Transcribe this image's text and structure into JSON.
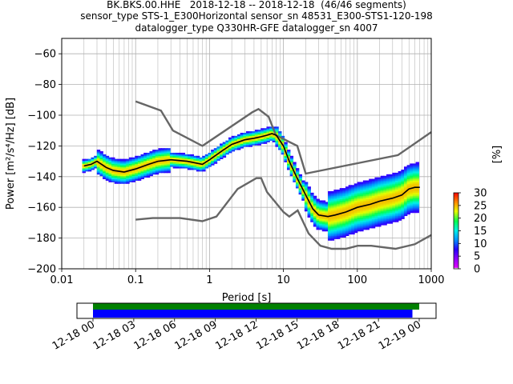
{
  "header": {
    "title_line1": "BK.BKS.00.HHE   2018-12-18 -- 2018-12-18  (46/46 segments)",
    "title_line2": "sensor_type STS-1_E300Horizontal sensor_sn 48531_E300-STS1-120-198",
    "title_line3": "datalogger_type Q330HR-GFE datalogger_sn 4007"
  },
  "chart_data": [
    {
      "type": "heatmap",
      "title": "BK.BKS.00.HHE   2018-12-18 -- 2018-12-18  (46/46 segments)",
      "xlabel": "Period [s]",
      "ylabel": "Power [m²/s⁴/Hz] [dB]",
      "xscale": "log",
      "xlim": [
        0.01,
        1000
      ],
      "ylim": [
        -200,
        -50
      ],
      "x_ticks": [
        "0.01",
        "0.1",
        "1",
        "10",
        "100",
        "1000"
      ],
      "y_ticks": [
        "−60",
        "−80",
        "−100",
        "−120",
        "−140",
        "−160",
        "−180",
        "−200"
      ],
      "grid": true,
      "colorbar": {
        "label": "[%]",
        "range": [
          0,
          30
        ],
        "ticks": [
          "0",
          "5",
          "10",
          "15",
          "20",
          "25",
          "30"
        ],
        "colors": [
          "#ffffff",
          "#d500ff",
          "#8a00ff",
          "#0000ff",
          "#00d4ff",
          "#00ff66",
          "#ffff00",
          "#ff8000",
          "#ff0000"
        ]
      },
      "mean_curve": {
        "x": [
          0.02,
          0.025,
          0.03,
          0.04,
          0.05,
          0.07,
          0.1,
          0.15,
          0.2,
          0.3,
          0.5,
          0.8,
          1,
          1.5,
          2,
          3,
          4,
          5,
          6,
          7,
          8,
          10,
          12,
          15,
          20,
          25,
          30,
          40,
          50,
          70,
          100,
          150,
          200,
          300,
          400,
          500,
          600,
          700
        ],
        "y": [
          -133,
          -132,
          -130,
          -134,
          -136,
          -137,
          -135,
          -132,
          -130,
          -129,
          -130,
          -132,
          -129,
          -123,
          -119,
          -116,
          -115,
          -114,
          -113,
          -112,
          -113,
          -120,
          -130,
          -140,
          -152,
          -161,
          -165,
          -166,
          -165,
          -163,
          -160,
          -158,
          -156,
          -154,
          -152,
          -148,
          -147,
          -147
        ]
      },
      "nlnm": {
        "x": [
          0.1,
          0.17,
          0.4,
          0.8,
          1.24,
          2.4,
          4.3,
          5,
          6,
          10,
          12,
          15.6,
          21.9,
          31.6,
          45,
          70,
          101,
          154,
          328,
          600,
          1000
        ],
        "y": [
          -168,
          -167,
          -167,
          -169,
          -166,
          -148,
          -141,
          -141,
          -150,
          -163,
          -166,
          -162,
          -177,
          -185,
          -187,
          -187,
          -185,
          -185,
          -187,
          -184,
          -178
        ]
      },
      "nhnm": {
        "x": [
          0.1,
          0.22,
          0.32,
          0.8,
          3.8,
          4.6,
          6.3,
          7.9,
          15.4,
          20,
          354.8,
          1000
        ],
        "y": [
          -91,
          -97,
          -110,
          -120,
          -98,
          -96,
          -101,
          -113,
          -120,
          -138,
          -126,
          -111
        ]
      }
    },
    {
      "type": "bar",
      "title": "",
      "x_ticks": [
        "12-18 00",
        "12-18 03",
        "12-18 06",
        "12-18 09",
        "12-18 12",
        "12-18 15",
        "12-18 18",
        "12-18 21",
        "12-19 00"
      ],
      "series": [
        {
          "color": "#008000",
          "start": "12-18 00",
          "end": "12-19 00"
        },
        {
          "color": "#0000ff",
          "start": "12-18 00",
          "end": "12-18 23:30"
        }
      ]
    }
  ]
}
